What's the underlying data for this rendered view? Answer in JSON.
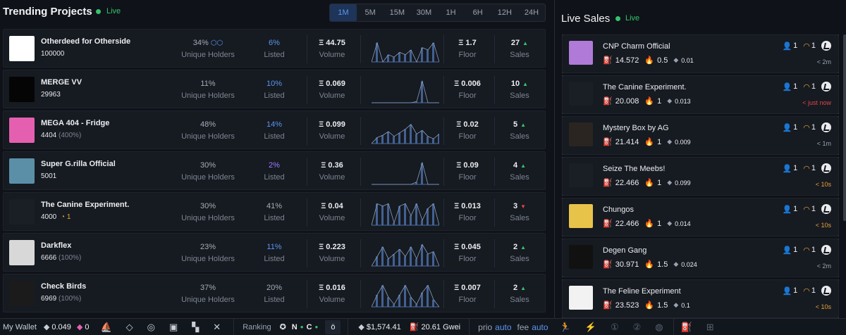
{
  "trending": {
    "title": "Trending Projects",
    "live_label": "Live",
    "timeframes": [
      "1M",
      "5M",
      "15M",
      "30M",
      "1H",
      "6H",
      "12H",
      "24H"
    ],
    "active_timeframe": "1M",
    "labels": {
      "holders": "Unique Holders",
      "listed": "Listed",
      "volume": "Volume",
      "floor": "Floor",
      "sales": "Sales"
    },
    "projects": [
      {
        "name": "Otherdeed for Otherside",
        "supply": "100000",
        "supply_pct": "",
        "extra": "",
        "holders": "34%",
        "listed": "6%",
        "listed_color": "blue",
        "volume": "Ξ 44.75",
        "floor": "Ξ 1.7",
        "sales": "27",
        "trend": "up",
        "spark": [
          0,
          0.8,
          0,
          0.3,
          0.2,
          0.4,
          0.3,
          0.5,
          0,
          0.6,
          0.5,
          0.8,
          0
        ],
        "thumb": "#ffffff"
      },
      {
        "name": "MERGE VV",
        "supply": "29963",
        "supply_pct": "",
        "extra": "",
        "holders": "11%",
        "listed": "10%",
        "listed_color": "blue",
        "volume": "Ξ 0.069",
        "floor": "Ξ 0.006",
        "sales": "10",
        "trend": "up",
        "spark": [
          0,
          0,
          0,
          0,
          0,
          0,
          0,
          0,
          0.05,
          0.9,
          0,
          0,
          0
        ],
        "thumb": "#050505"
      },
      {
        "name": "MEGA 404 - Fridge",
        "supply": "4404",
        "supply_pct": "(400%)",
        "extra": "",
        "holders": "48%",
        "listed": "14%",
        "listed_color": "blue",
        "volume": "Ξ 0.099",
        "floor": "Ξ 0.02",
        "sales": "5",
        "trend": "up",
        "spark": [
          0,
          0.25,
          0.35,
          0.5,
          0.3,
          0.45,
          0.6,
          0.8,
          0.4,
          0.55,
          0.3,
          0.2,
          0.4
        ],
        "thumb": "#e55fb0"
      },
      {
        "name": "Super G.rilla Official",
        "supply": "5001",
        "supply_pct": "",
        "extra": "",
        "holders": "30%",
        "listed": "2%",
        "listed_color": "purple",
        "volume": "Ξ 0.36",
        "floor": "Ξ 0.09",
        "sales": "4",
        "trend": "up",
        "spark": [
          0,
          0,
          0,
          0,
          0,
          0,
          0,
          0,
          0.1,
          0.9,
          0,
          0,
          0
        ],
        "thumb": "#5b8fa8"
      },
      {
        "name": "The Canine Experiment.",
        "supply": "4000",
        "supply_pct": "",
        "extra": "1",
        "holders": "30%",
        "listed": "41%",
        "listed_color": "",
        "volume": "Ξ 0.04",
        "floor": "Ξ 0.013",
        "sales": "3",
        "trend": "down",
        "spark": [
          0,
          0.9,
          0.8,
          0.9,
          0.1,
          0.8,
          0.9,
          0.4,
          0.9,
          0.2,
          0.7,
          0.9,
          0
        ],
        "thumb": "#1a1e25"
      },
      {
        "name": "Darkflex",
        "supply": "6666",
        "supply_pct": "(100%)",
        "extra": "",
        "holders": "23%",
        "listed": "11%",
        "listed_color": "blue",
        "volume": "Ξ 0.223",
        "floor": "Ξ 0.045",
        "sales": "2",
        "trend": "up",
        "spark": [
          0,
          0.4,
          0.8,
          0.3,
          0.5,
          0.7,
          0.4,
          0.8,
          0.3,
          0.9,
          0.5,
          0.6,
          0
        ],
        "thumb": "#d8d8d8"
      },
      {
        "name": "Check Birds",
        "supply": "6969",
        "supply_pct": "(100%)",
        "extra": "",
        "holders": "37%",
        "listed": "20%",
        "listed_color": "",
        "volume": "Ξ 0.016",
        "floor": "Ξ 0.007",
        "sales": "2",
        "trend": "up",
        "spark": [
          0,
          0.5,
          0.9,
          0.4,
          0.1,
          0.5,
          0.9,
          0.4,
          0.1,
          0.6,
          0.9,
          0.3,
          0
        ],
        "thumb": "#1b1b1b"
      }
    ]
  },
  "live_sales": {
    "title": "Live Sales",
    "live_label": "Live",
    "items": [
      {
        "name": "CNP Charm Official",
        "price": "14.572",
        "gas": "0.5",
        "fee": "0.01",
        "owners": "1",
        "count": "1",
        "time": "< 2m",
        "time_style": "",
        "thumb": "#b07ad8"
      },
      {
        "name": "The Canine Experiment.",
        "price": "20.008",
        "gas": "1",
        "fee": "0.013",
        "owners": "1",
        "count": "1",
        "time": "< just now",
        "time_style": "hot",
        "thumb": "#1a1e25"
      },
      {
        "name": "Mystery Box by AG",
        "price": "21.414",
        "gas": "1",
        "fee": "0.009",
        "owners": "1",
        "count": "1",
        "time": "< 1m",
        "time_style": "",
        "thumb": "#2a2520"
      },
      {
        "name": "Seize The Meebs!",
        "price": "22.466",
        "gas": "1",
        "fee": "0.099",
        "owners": "1",
        "count": "1",
        "time": "< 10s",
        "time_style": "warn",
        "thumb": "#1a1e25"
      },
      {
        "name": "Chungos",
        "price": "22.466",
        "gas": "1",
        "fee": "0.014",
        "owners": "1",
        "count": "1",
        "time": "< 10s",
        "time_style": "warn",
        "thumb": "#e8c34a"
      },
      {
        "name": "Degen Gang",
        "price": "30.971",
        "gas": "1.5",
        "fee": "0.024",
        "owners": "1",
        "count": "1",
        "time": "< 2m",
        "time_style": "",
        "thumb": "#111111"
      },
      {
        "name": "The Feline Experiment",
        "price": "23.523",
        "gas": "1.5",
        "fee": "0.1",
        "owners": "1",
        "count": "1",
        "time": "< 10s",
        "time_style": "warn",
        "thumb": "#f2f2f2"
      }
    ]
  },
  "bottom_bar": {
    "wallet_label": "My Wallet",
    "eth_balance": "0.049",
    "other_balance": "0",
    "ranking_label": "Ranking",
    "ranking_letters": [
      "N",
      "C"
    ],
    "eth_price": "$1,574.41",
    "gas": "20.61 Gwei",
    "prio_label": "prio",
    "prio_value": "auto",
    "fee_label": "fee",
    "fee_value": "auto"
  },
  "colors": {
    "accent": "#5a97f0",
    "live": "#35c46b",
    "up": "#35c46b",
    "down": "#e0464a",
    "warn": "#e8a23a"
  }
}
